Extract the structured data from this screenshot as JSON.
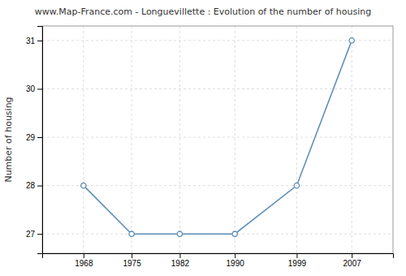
{
  "chart_data": {
    "type": "line",
    "title": "www.Map-France.com - Longuevillette : Evolution of the number of housing",
    "ylabel": "Number of housing",
    "x": [
      1968,
      1975,
      1982,
      1990,
      1999,
      2007
    ],
    "values": [
      28,
      27,
      27,
      27,
      28,
      31
    ],
    "color": "#5b8db8",
    "marker": "circle",
    "xlim": [
      1962,
      2013
    ],
    "ylim": [
      26.6,
      31.3
    ],
    "xticks": [
      1968,
      1975,
      1982,
      1990,
      1999,
      2007
    ],
    "yticks": [
      27,
      28,
      29,
      30,
      31
    ],
    "grid": true
  }
}
